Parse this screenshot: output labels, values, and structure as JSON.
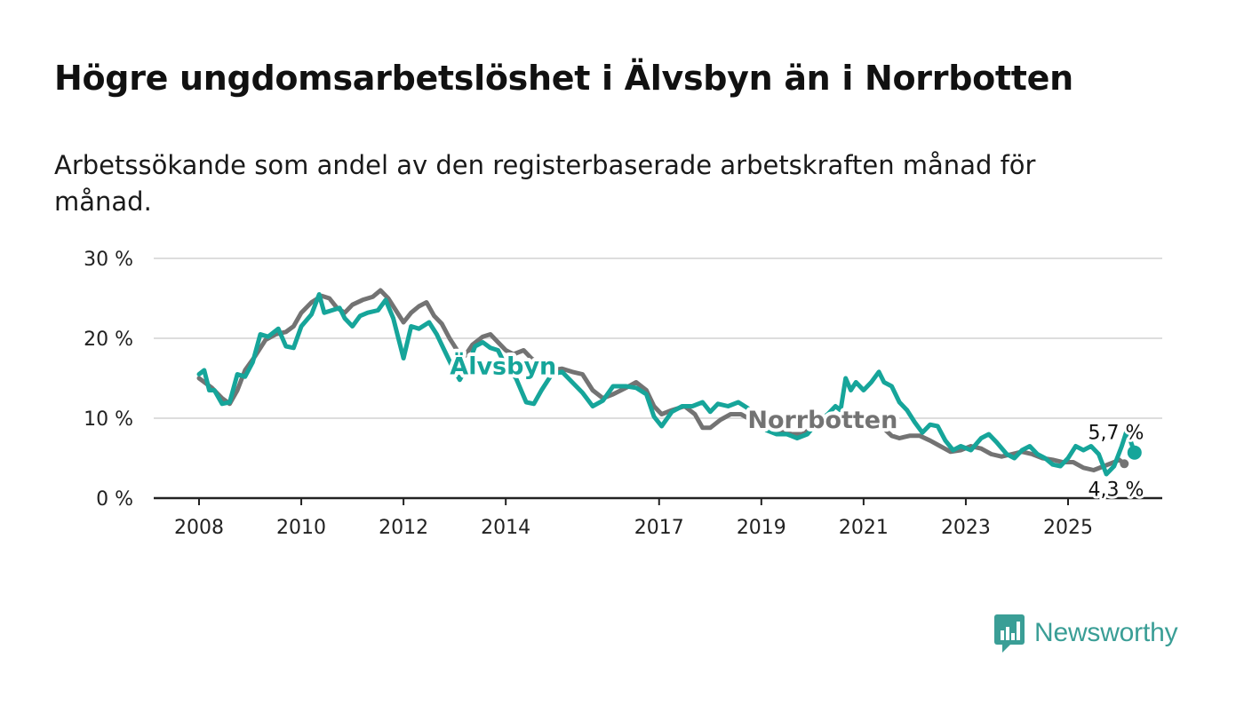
{
  "title": "Högre ungdomsarbetslöshet i Älvsbyn än i Norrbotten",
  "subtitle": "Arbetssökande som andel av den registerbaserade arbetskraften månad för månad.",
  "brand": {
    "name": "Newsworthy"
  },
  "colors": {
    "alvsbyn": "#16a59a",
    "norrbotten": "#737373",
    "grid": "#dddddd",
    "axis": "#222222"
  },
  "chart_data": {
    "type": "line",
    "title": "Högre ungdomsarbetslöshet i Älvsbyn än i Norrbotten",
    "xlabel": "",
    "ylabel": "",
    "xlim": [
      2008,
      2026.8
    ],
    "ylim": [
      0,
      30
    ],
    "yticks": [
      0,
      10,
      20,
      30
    ],
    "ytick_labels": [
      "0 %",
      "10 %",
      "20 %",
      "30 %"
    ],
    "xticks": [
      2008,
      2010,
      2012,
      2014,
      2017,
      2019,
      2021,
      2023,
      2025
    ],
    "xtick_labels": [
      "2008",
      "2010",
      "2012",
      "2014",
      "2017",
      "2019",
      "2021",
      "2023",
      "2025"
    ],
    "grid": true,
    "series": [
      {
        "name": "Norrbotten",
        "label": "Norrbotten",
        "end_label": "4,3 %",
        "color": "#737373",
        "points": [
          [
            2008.0,
            15.0
          ],
          [
            2008.25,
            13.8
          ],
          [
            2008.45,
            12.5
          ],
          [
            2008.6,
            11.8
          ],
          [
            2008.75,
            13.5
          ],
          [
            2008.9,
            16.0
          ],
          [
            2009.1,
            17.8
          ],
          [
            2009.3,
            19.8
          ],
          [
            2009.5,
            20.5
          ],
          [
            2009.7,
            20.8
          ],
          [
            2009.85,
            21.5
          ],
          [
            2010.0,
            23.2
          ],
          [
            2010.2,
            24.5
          ],
          [
            2010.4,
            25.3
          ],
          [
            2010.55,
            25.0
          ],
          [
            2010.7,
            23.8
          ],
          [
            2010.85,
            23.2
          ],
          [
            2011.0,
            24.2
          ],
          [
            2011.2,
            24.8
          ],
          [
            2011.4,
            25.2
          ],
          [
            2011.55,
            26.0
          ],
          [
            2011.7,
            25.0
          ],
          [
            2011.85,
            23.5
          ],
          [
            2012.0,
            22.0
          ],
          [
            2012.15,
            23.2
          ],
          [
            2012.3,
            24.0
          ],
          [
            2012.45,
            24.5
          ],
          [
            2012.6,
            22.8
          ],
          [
            2012.75,
            21.8
          ],
          [
            2012.9,
            20.0
          ],
          [
            2013.05,
            18.5
          ],
          [
            2013.2,
            17.8
          ],
          [
            2013.35,
            19.2
          ],
          [
            2013.55,
            20.2
          ],
          [
            2013.7,
            20.5
          ],
          [
            2013.85,
            19.5
          ],
          [
            2014.0,
            18.5
          ],
          [
            2014.15,
            18.0
          ],
          [
            2014.35,
            18.5
          ],
          [
            2014.5,
            17.5
          ],
          [
            2014.7,
            16.5
          ],
          [
            2014.9,
            16.0
          ],
          [
            2015.1,
            16.2
          ],
          [
            2015.3,
            15.8
          ],
          [
            2015.5,
            15.5
          ],
          [
            2015.7,
            13.5
          ],
          [
            2015.9,
            12.5
          ],
          [
            2016.1,
            13.0
          ],
          [
            2016.35,
            13.8
          ],
          [
            2016.55,
            14.5
          ],
          [
            2016.75,
            13.5
          ],
          [
            2016.9,
            11.5
          ],
          [
            2017.05,
            10.5
          ],
          [
            2017.25,
            11.0
          ],
          [
            2017.5,
            11.5
          ],
          [
            2017.7,
            10.5
          ],
          [
            2017.85,
            8.8
          ],
          [
            2018.0,
            8.8
          ],
          [
            2018.2,
            9.8
          ],
          [
            2018.4,
            10.5
          ],
          [
            2018.6,
            10.5
          ],
          [
            2018.8,
            9.8
          ],
          [
            2019.0,
            9.0
          ],
          [
            2019.3,
            8.5
          ],
          [
            2019.6,
            8.0
          ],
          [
            2019.8,
            8.0
          ],
          [
            2020.0,
            8.8
          ],
          [
            2020.3,
            9.5
          ],
          [
            2020.6,
            10.2
          ],
          [
            2020.9,
            10.8
          ],
          [
            2021.1,
            10.2
          ],
          [
            2021.35,
            9.0
          ],
          [
            2021.55,
            7.8
          ],
          [
            2021.7,
            7.5
          ],
          [
            2021.9,
            7.8
          ],
          [
            2022.1,
            7.8
          ],
          [
            2022.3,
            7.2
          ],
          [
            2022.5,
            6.5
          ],
          [
            2022.7,
            5.8
          ],
          [
            2022.9,
            6.0
          ],
          [
            2023.1,
            6.5
          ],
          [
            2023.3,
            6.2
          ],
          [
            2023.5,
            5.5
          ],
          [
            2023.7,
            5.2
          ],
          [
            2023.9,
            5.5
          ],
          [
            2024.1,
            5.8
          ],
          [
            2024.3,
            5.5
          ],
          [
            2024.5,
            5.0
          ],
          [
            2024.7,
            4.8
          ],
          [
            2024.9,
            4.5
          ],
          [
            2025.1,
            4.5
          ],
          [
            2025.3,
            3.8
          ],
          [
            2025.5,
            3.5
          ],
          [
            2025.7,
            4.0
          ],
          [
            2025.9,
            4.5
          ],
          [
            2026.0,
            4.8
          ],
          [
            2026.1,
            4.3
          ]
        ]
      },
      {
        "name": "Älvsbyn",
        "label": "Älvsbyn",
        "end_label": "5,7 %",
        "color": "#16a59a",
        "points": [
          [
            2008.0,
            15.5
          ],
          [
            2008.1,
            16.0
          ],
          [
            2008.2,
            13.5
          ],
          [
            2008.3,
            13.5
          ],
          [
            2008.45,
            11.8
          ],
          [
            2008.6,
            12.0
          ],
          [
            2008.75,
            15.5
          ],
          [
            2008.9,
            15.2
          ],
          [
            2009.05,
            17.0
          ],
          [
            2009.2,
            20.5
          ],
          [
            2009.35,
            20.2
          ],
          [
            2009.55,
            21.2
          ],
          [
            2009.7,
            19.0
          ],
          [
            2009.85,
            18.8
          ],
          [
            2010.0,
            21.5
          ],
          [
            2010.2,
            23.0
          ],
          [
            2010.35,
            25.5
          ],
          [
            2010.45,
            23.2
          ],
          [
            2010.6,
            23.5
          ],
          [
            2010.75,
            23.8
          ],
          [
            2010.85,
            22.5
          ],
          [
            2011.0,
            21.5
          ],
          [
            2011.15,
            22.8
          ],
          [
            2011.3,
            23.2
          ],
          [
            2011.5,
            23.5
          ],
          [
            2011.65,
            24.8
          ],
          [
            2011.8,
            22.5
          ],
          [
            2012.0,
            17.5
          ],
          [
            2012.15,
            21.5
          ],
          [
            2012.3,
            21.2
          ],
          [
            2012.5,
            22.0
          ],
          [
            2012.65,
            20.5
          ],
          [
            2012.8,
            18.5
          ],
          [
            2012.95,
            16.5
          ],
          [
            2013.1,
            14.8
          ],
          [
            2013.25,
            16.5
          ],
          [
            2013.4,
            19.0
          ],
          [
            2013.55,
            19.5
          ],
          [
            2013.7,
            18.8
          ],
          [
            2013.85,
            18.5
          ],
          [
            2014.0,
            16.5
          ],
          [
            2014.2,
            15.0
          ],
          [
            2014.4,
            12.0
          ],
          [
            2014.55,
            11.8
          ],
          [
            2014.7,
            13.5
          ],
          [
            2014.9,
            15.5
          ],
          [
            2015.1,
            15.8
          ],
          [
            2015.3,
            14.5
          ],
          [
            2015.5,
            13.2
          ],
          [
            2015.7,
            11.5
          ],
          [
            2015.9,
            12.2
          ],
          [
            2016.1,
            14.0
          ],
          [
            2016.35,
            14.0
          ],
          [
            2016.55,
            13.8
          ],
          [
            2016.75,
            13.0
          ],
          [
            2016.9,
            10.2
          ],
          [
            2017.05,
            9.0
          ],
          [
            2017.25,
            10.8
          ],
          [
            2017.45,
            11.5
          ],
          [
            2017.65,
            11.5
          ],
          [
            2017.85,
            12.0
          ],
          [
            2018.0,
            10.8
          ],
          [
            2018.15,
            11.8
          ],
          [
            2018.35,
            11.5
          ],
          [
            2018.55,
            12.0
          ],
          [
            2018.75,
            11.2
          ],
          [
            2018.9,
            10.0
          ],
          [
            2019.1,
            8.5
          ],
          [
            2019.3,
            8.0
          ],
          [
            2019.5,
            8.0
          ],
          [
            2019.7,
            7.5
          ],
          [
            2019.9,
            8.0
          ],
          [
            2020.1,
            9.5
          ],
          [
            2020.3,
            10.5
          ],
          [
            2020.45,
            11.5
          ],
          [
            2020.55,
            11.0
          ],
          [
            2020.65,
            15.0
          ],
          [
            2020.75,
            13.5
          ],
          [
            2020.85,
            14.5
          ],
          [
            2021.0,
            13.5
          ],
          [
            2021.15,
            14.5
          ],
          [
            2021.3,
            15.8
          ],
          [
            2021.4,
            14.5
          ],
          [
            2021.55,
            14.0
          ],
          [
            2021.7,
            12.0
          ],
          [
            2021.85,
            11.0
          ],
          [
            2022.0,
            9.5
          ],
          [
            2022.15,
            8.2
          ],
          [
            2022.3,
            9.2
          ],
          [
            2022.45,
            9.0
          ],
          [
            2022.6,
            7.2
          ],
          [
            2022.75,
            6.0
          ],
          [
            2022.9,
            6.5
          ],
          [
            2023.1,
            6.0
          ],
          [
            2023.3,
            7.5
          ],
          [
            2023.45,
            8.0
          ],
          [
            2023.6,
            7.0
          ],
          [
            2023.8,
            5.5
          ],
          [
            2023.95,
            5.0
          ],
          [
            2024.1,
            6.0
          ],
          [
            2024.25,
            6.5
          ],
          [
            2024.4,
            5.5
          ],
          [
            2024.55,
            5.0
          ],
          [
            2024.7,
            4.2
          ],
          [
            2024.85,
            4.0
          ],
          [
            2025.0,
            5.0
          ],
          [
            2025.15,
            6.5
          ],
          [
            2025.3,
            6.0
          ],
          [
            2025.45,
            6.5
          ],
          [
            2025.6,
            5.5
          ],
          [
            2025.75,
            3.0
          ],
          [
            2025.9,
            4.0
          ],
          [
            2026.05,
            6.5
          ],
          [
            2026.15,
            8.5
          ],
          [
            2026.3,
            5.7
          ]
        ]
      }
    ]
  }
}
